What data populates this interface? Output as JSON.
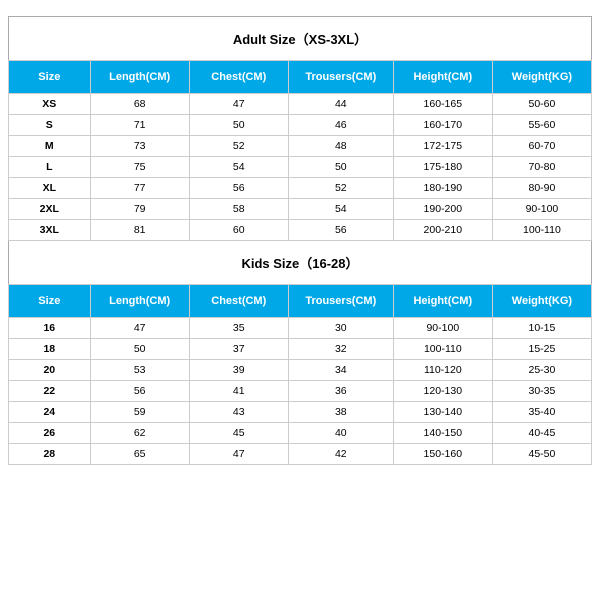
{
  "adult": {
    "title": "Adult Size（XS-3XL）",
    "columns": [
      "Size",
      "Length(CM)",
      "Chest(CM)",
      "Trousers(CM)",
      "Height(CM)",
      "Weight(KG)"
    ],
    "rows": [
      [
        "XS",
        "68",
        "47",
        "44",
        "160-165",
        "50-60"
      ],
      [
        "S",
        "71",
        "50",
        "46",
        "160-170",
        "55-60"
      ],
      [
        "M",
        "73",
        "52",
        "48",
        "172-175",
        "60-70"
      ],
      [
        "L",
        "75",
        "54",
        "50",
        "175-180",
        "70-80"
      ],
      [
        "XL",
        "77",
        "56",
        "52",
        "180-190",
        "80-90"
      ],
      [
        "2XL",
        "79",
        "58",
        "54",
        "190-200",
        "90-100"
      ],
      [
        "3XL",
        "81",
        "60",
        "56",
        "200-210",
        "100-110"
      ]
    ]
  },
  "kids": {
    "title": "Kids Size（16-28）",
    "columns": [
      "Size",
      "Length(CM)",
      "Chest(CM)",
      "Trousers(CM)",
      "Height(CM)",
      "Weight(KG)"
    ],
    "rows": [
      [
        "16",
        "47",
        "35",
        "30",
        "90-100",
        "10-15"
      ],
      [
        "18",
        "50",
        "37",
        "32",
        "100-110",
        "15-25"
      ],
      [
        "20",
        "53",
        "39",
        "34",
        "110-120",
        "25-30"
      ],
      [
        "22",
        "56",
        "41",
        "36",
        "120-130",
        "30-35"
      ],
      [
        "24",
        "59",
        "43",
        "38",
        "130-140",
        "35-40"
      ],
      [
        "26",
        "62",
        "45",
        "40",
        "140-150",
        "40-45"
      ],
      [
        "28",
        "65",
        "47",
        "42",
        "150-160",
        "45-50"
      ]
    ]
  },
  "style": {
    "header_bg": "#00a8e8",
    "header_fg": "#ffffff",
    "border_color": "#cccccc",
    "title_fontsize": 13,
    "header_fontsize": 11,
    "cell_fontsize": 10.5,
    "col_widths_pct": [
      14,
      17,
      17,
      18,
      17,
      17
    ]
  }
}
